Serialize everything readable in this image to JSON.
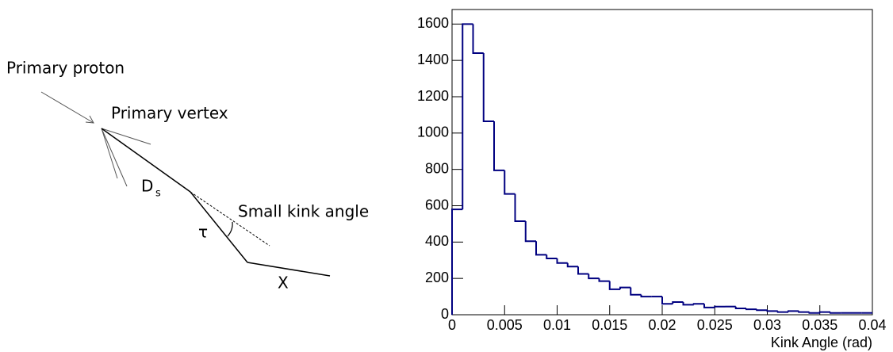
{
  "diagram": {
    "labels": {
      "primary_proton": "Primary proton",
      "primary_vertex": "Primary vertex",
      "ds_main": "D",
      "ds_sub": "s",
      "tau": "τ",
      "kink": "Small kink angle",
      "x": "X"
    }
  },
  "chart_data": {
    "type": "histogram",
    "xlabel": "Kink Angle (rad)",
    "color": "#000080",
    "bins": [
      0,
      0.001,
      0.002,
      0.003,
      0.004,
      0.005,
      0.006,
      0.007,
      0.008,
      0.009,
      0.01,
      0.011,
      0.012,
      0.013,
      0.014,
      0.015,
      0.016,
      0.017,
      0.018,
      0.019,
      0.02,
      0.021,
      0.022,
      0.023,
      0.024,
      0.025,
      0.026,
      0.027,
      0.028,
      0.029,
      0.03,
      0.031,
      0.032,
      0.033,
      0.034,
      0.035,
      0.036,
      0.037,
      0.038,
      0.039,
      0.04
    ],
    "values": [
      580,
      1600,
      1440,
      1065,
      795,
      665,
      515,
      405,
      330,
      310,
      285,
      265,
      225,
      200,
      185,
      140,
      150,
      110,
      100,
      100,
      60,
      70,
      55,
      60,
      40,
      45,
      45,
      35,
      30,
      25,
      20,
      15,
      20,
      15,
      10,
      15,
      10,
      10,
      10,
      10
    ],
    "xlim": [
      0,
      0.04
    ],
    "ylim": [
      0,
      1680
    ],
    "xticks": [
      0,
      0.005,
      0.01,
      0.015,
      0.02,
      0.025,
      0.03,
      0.035,
      0.04
    ],
    "yticks": [
      0,
      200,
      400,
      600,
      800,
      1000,
      1200,
      1400,
      1600
    ]
  }
}
